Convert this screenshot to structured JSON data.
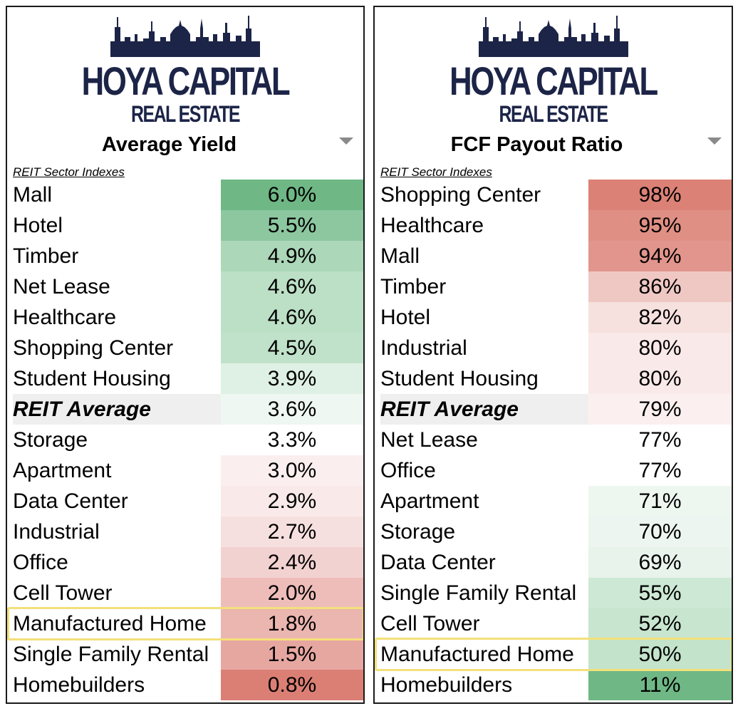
{
  "logo": {
    "main": "HOYA CAPITAL",
    "sub": "REAL ESTATE"
  },
  "colors": {
    "logo_navy": "#1c2447",
    "highlight_border": "#f3e07a",
    "average_label_bg": "#efefef",
    "positive_green": "#63be7b",
    "negative_red": "#f8696b"
  },
  "left": {
    "title": "Average Yield",
    "subtitle": "REIT Sector Indexes",
    "highlight_label": "Manufactured Home",
    "rows": [
      {
        "label": "Mall",
        "value": "6.0%",
        "bg": "#6fb886"
      },
      {
        "label": "Hotel",
        "value": "5.5%",
        "bg": "#8cc7a0"
      },
      {
        "label": "Timber",
        "value": "4.9%",
        "bg": "#acd7b9"
      },
      {
        "label": "Net Lease",
        "value": "4.6%",
        "bg": "#bce0c6"
      },
      {
        "label": "Healthcare",
        "value": "4.6%",
        "bg": "#bce0c6"
      },
      {
        "label": "Shopping Center",
        "value": "4.5%",
        "bg": "#c1e2ca"
      },
      {
        "label": "Student Housing",
        "value": "3.9%",
        "bg": "#dff0e4"
      },
      {
        "label": "REIT Average",
        "value": "3.6%",
        "bg": "#eef7f1",
        "avg": true
      },
      {
        "label": "Storage",
        "value": "3.3%",
        "bg": "#ffffff"
      },
      {
        "label": "Apartment",
        "value": "3.0%",
        "bg": "#fbeeee"
      },
      {
        "label": "Data Center",
        "value": "2.9%",
        "bg": "#f9e9e9"
      },
      {
        "label": "Industrial",
        "value": "2.7%",
        "bg": "#f6e0df"
      },
      {
        "label": "Office",
        "value": "2.4%",
        "bg": "#f2d2d1"
      },
      {
        "label": "Cell Tower",
        "value": "2.0%",
        "bg": "#eebdb9"
      },
      {
        "label": "Manufactured Home",
        "value": "1.8%",
        "bg": "#ebb5b0"
      },
      {
        "label": "Single Family Rental",
        "value": "1.5%",
        "bg": "#e7a7a1"
      },
      {
        "label": "Homebuilders",
        "value": "0.8%",
        "bg": "#db7f74"
      }
    ]
  },
  "right": {
    "title": "FCF Payout Ratio",
    "subtitle": "REIT Sector Indexes",
    "highlight_label": "Manufactured Home",
    "rows": [
      {
        "label": "Shopping Center",
        "value": "98%",
        "bg": "#dc8176"
      },
      {
        "label": "Healthcare",
        "value": "95%",
        "bg": "#e08f85"
      },
      {
        "label": "Mall",
        "value": "94%",
        "bg": "#e2958c"
      },
      {
        "label": "Timber",
        "value": "86%",
        "bg": "#efc8c4"
      },
      {
        "label": "Hotel",
        "value": "82%",
        "bg": "#f6e1df"
      },
      {
        "label": "Industrial",
        "value": "80%",
        "bg": "#f9e9e8"
      },
      {
        "label": "Student Housing",
        "value": "80%",
        "bg": "#f9e9e8"
      },
      {
        "label": "REIT Average",
        "value": "79%",
        "bg": "#fbf0ef",
        "avg": true
      },
      {
        "label": "Net Lease",
        "value": "77%",
        "bg": "#ffffff"
      },
      {
        "label": "Office",
        "value": "77%",
        "bg": "#ffffff"
      },
      {
        "label": "Apartment",
        "value": "71%",
        "bg": "#eef6f0"
      },
      {
        "label": "Storage",
        "value": "70%",
        "bg": "#ecf5ef"
      },
      {
        "label": "Data Center",
        "value": "69%",
        "bg": "#e8f3eb"
      },
      {
        "label": "Single Family Rental",
        "value": "55%",
        "bg": "#cde8d4"
      },
      {
        "label": "Cell Tower",
        "value": "52%",
        "bg": "#c8e5cf"
      },
      {
        "label": "Manufactured Home",
        "value": "50%",
        "bg": "#c3e3cb"
      },
      {
        "label": "Homebuilders",
        "value": "11%",
        "bg": "#6fb886"
      }
    ]
  },
  "chart_data": [
    {
      "type": "table",
      "title": "Average Yield",
      "subtitle": "REIT Sector Indexes",
      "categories": [
        "Mall",
        "Hotel",
        "Timber",
        "Net Lease",
        "Healthcare",
        "Shopping Center",
        "Student Housing",
        "REIT Average",
        "Storage",
        "Apartment",
        "Data Center",
        "Industrial",
        "Office",
        "Cell Tower",
        "Manufactured Home",
        "Single Family Rental",
        "Homebuilders"
      ],
      "values": [
        6.0,
        5.5,
        4.9,
        4.6,
        4.6,
        4.5,
        3.9,
        3.6,
        3.3,
        3.0,
        2.9,
        2.7,
        2.4,
        2.0,
        1.8,
        1.5,
        0.8
      ],
      "unit": "%",
      "highlighted": "Manufactured Home"
    },
    {
      "type": "table",
      "title": "FCF Payout Ratio",
      "subtitle": "REIT Sector Indexes",
      "categories": [
        "Shopping Center",
        "Healthcare",
        "Mall",
        "Timber",
        "Hotel",
        "Industrial",
        "Student Housing",
        "REIT Average",
        "Net Lease",
        "Office",
        "Apartment",
        "Storage",
        "Data Center",
        "Single Family Rental",
        "Cell Tower",
        "Manufactured Home",
        "Homebuilders"
      ],
      "values": [
        98,
        95,
        94,
        86,
        82,
        80,
        80,
        79,
        77,
        77,
        71,
        70,
        69,
        55,
        52,
        50,
        11
      ],
      "unit": "%",
      "highlighted": "Manufactured Home"
    }
  ]
}
